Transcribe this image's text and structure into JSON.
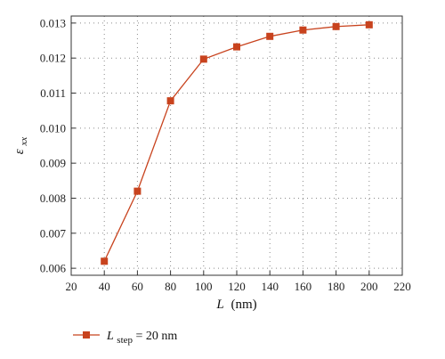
{
  "chart_data": {
    "type": "line",
    "xlabel": {
      "var": "L",
      "unit": "(nm)"
    },
    "ylabel": {
      "base": "ε",
      "sub": "xx"
    },
    "xlim": [
      20,
      220
    ],
    "ylim": [
      0.0058,
      0.0132
    ],
    "x_ticks": [
      "20",
      "40",
      "60",
      "80",
      "100",
      "120",
      "140",
      "160",
      "180",
      "200",
      "220"
    ],
    "y_ticks": [
      "0.006",
      "0.007",
      "0.008",
      "0.009",
      "0.010",
      "0.011",
      "0.012",
      "0.013"
    ],
    "grid": true,
    "legend": {
      "position": "bottom-left"
    },
    "series": [
      {
        "name": "L_step = 20 nm",
        "name_parts": {
          "var": "L",
          "sub": "step",
          "rest": " = 20 nm"
        },
        "color": "#c8431e",
        "marker": "square",
        "x": [
          40,
          60,
          80,
          100,
          120,
          140,
          160,
          180,
          200
        ],
        "y": [
          0.0062,
          0.0082,
          0.01078,
          0.01197,
          0.01232,
          0.01262,
          0.0128,
          0.0129,
          0.01295
        ]
      }
    ]
  }
}
